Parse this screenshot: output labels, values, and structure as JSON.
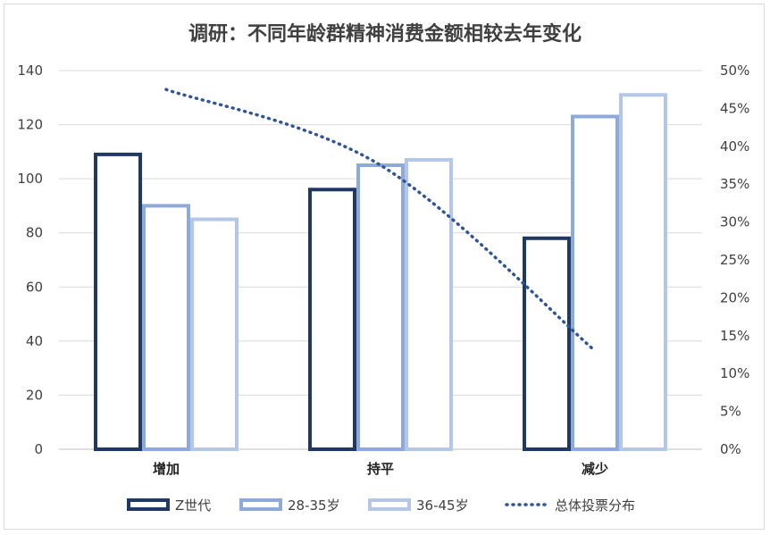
{
  "chart_data": {
    "type": "bar",
    "title": "调研：不同年龄群精神消费金额相较去年变化",
    "categories": [
      "增加",
      "持平",
      "减少"
    ],
    "series": [
      {
        "name": "Z世代",
        "values": [
          109,
          96,
          78
        ],
        "color": "#1f3864"
      },
      {
        "name": "28-35岁",
        "values": [
          90,
          105,
          123
        ],
        "color": "#8eaadb"
      },
      {
        "name": "36-45岁",
        "values": [
          85,
          107,
          131
        ],
        "color": "#b4c7e7"
      }
    ],
    "line_series": {
      "name": "总体投票分布",
      "values": [
        0.475,
        0.375,
        0.13
      ],
      "color": "#2f5597",
      "style": "dotted",
      "axis": "secondary"
    },
    "ylim": [
      0,
      140
    ],
    "y_ticks": [
      "0",
      "20",
      "40",
      "60",
      "80",
      "100",
      "120",
      "140"
    ],
    "y2lim": [
      0,
      0.5
    ],
    "y2_ticks": [
      "0%",
      "5%",
      "10%",
      "15%",
      "20%",
      "25%",
      "30%",
      "35%",
      "40%",
      "45%",
      "50%"
    ],
    "grid": true,
    "legend_position": "bottom"
  }
}
